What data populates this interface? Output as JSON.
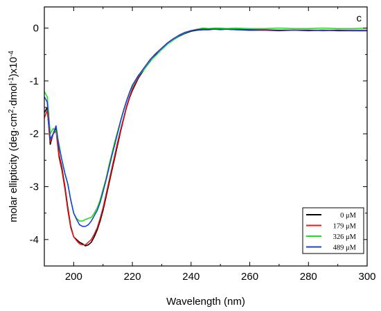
{
  "panel_label": "c",
  "chart_data": {
    "type": "line",
    "title": "",
    "xlabel": "Wavelength (nm)",
    "ylabel": {
      "main": "molar ellipticity (deg·cm",
      "sup1": "2",
      "mid": "·dmol",
      "sup2": "-1",
      "tail": ")x10",
      "sup3": "-4"
    },
    "xlim": [
      190,
      300
    ],
    "ylim": [
      -4.5,
      0.4
    ],
    "x_ticks": [
      200,
      220,
      240,
      260,
      280,
      300
    ],
    "y_ticks": [
      0,
      -1,
      -2,
      -3,
      -4
    ],
    "x_tick_labels": [
      "200",
      "220",
      "240",
      "260",
      "280",
      "300"
    ],
    "y_tick_labels": [
      "0",
      "-1",
      "-2",
      "-3",
      "-4"
    ],
    "grid": false,
    "legend_position": "bottom-right",
    "series": [
      {
        "name": "0 μM",
        "color": "#000000",
        "x": [
          190,
          191,
          192,
          193,
          194,
          195,
          196,
          197,
          198,
          199,
          200,
          201,
          202,
          203,
          204,
          205,
          206,
          207,
          208,
          209,
          210,
          211,
          212,
          213,
          214,
          215,
          216,
          217,
          218,
          219,
          220,
          222,
          224,
          226,
          228,
          230,
          232,
          234,
          236,
          238,
          240,
          242,
          244,
          246,
          248,
          250,
          252,
          255,
          260,
          265,
          270,
          275,
          280,
          285,
          290,
          295,
          300
        ],
        "y": [
          -1.6,
          -1.5,
          -2.2,
          -2.0,
          -1.9,
          -2.4,
          -2.65,
          -3.0,
          -3.4,
          -3.75,
          -3.95,
          -4.0,
          -4.05,
          -4.08,
          -4.12,
          -4.1,
          -4.05,
          -3.95,
          -3.82,
          -3.65,
          -3.45,
          -3.2,
          -2.95,
          -2.7,
          -2.45,
          -2.2,
          -1.95,
          -1.72,
          -1.5,
          -1.32,
          -1.18,
          -0.95,
          -0.78,
          -0.63,
          -0.5,
          -0.4,
          -0.3,
          -0.22,
          -0.15,
          -0.1,
          -0.06,
          -0.04,
          -0.03,
          -0.03,
          -0.02,
          -0.02,
          -0.02,
          -0.03,
          -0.04,
          -0.04,
          -0.05,
          -0.04,
          -0.05,
          -0.04,
          -0.05,
          -0.05,
          -0.05
        ]
      },
      {
        "name": "179 μM",
        "color": "#e41a1c",
        "x": [
          190,
          191,
          192,
          193,
          194,
          195,
          196,
          197,
          198,
          199,
          200,
          201,
          202,
          203,
          204,
          205,
          206,
          207,
          208,
          209,
          210,
          211,
          212,
          213,
          214,
          215,
          216,
          217,
          218,
          219,
          220,
          222,
          224,
          226,
          228,
          230,
          232,
          234,
          236,
          238,
          240,
          242,
          244,
          246,
          248,
          250,
          252,
          255,
          260,
          265,
          270,
          275,
          280,
          285,
          290,
          295,
          300
        ],
        "y": [
          -1.7,
          -1.55,
          -2.15,
          -2.0,
          -1.95,
          -2.45,
          -2.7,
          -3.05,
          -3.45,
          -3.78,
          -3.95,
          -4.02,
          -4.08,
          -4.1,
          -4.1,
          -4.05,
          -4.0,
          -3.9,
          -3.78,
          -3.6,
          -3.4,
          -3.15,
          -2.9,
          -2.65,
          -2.4,
          -2.15,
          -1.92,
          -1.7,
          -1.48,
          -1.3,
          -1.15,
          -0.93,
          -0.76,
          -0.6,
          -0.48,
          -0.38,
          -0.28,
          -0.2,
          -0.14,
          -0.09,
          -0.05,
          -0.03,
          -0.02,
          -0.02,
          -0.02,
          -0.01,
          -0.02,
          -0.02,
          -0.03,
          -0.03,
          -0.04,
          -0.04,
          -0.04,
          -0.04,
          -0.04,
          -0.04,
          -0.04
        ]
      },
      {
        "name": "326 μM",
        "color": "#22dd22",
        "x": [
          190,
          191,
          192,
          193,
          194,
          195,
          196,
          197,
          198,
          199,
          200,
          201,
          202,
          203,
          204,
          205,
          206,
          207,
          208,
          209,
          210,
          211,
          212,
          213,
          214,
          215,
          216,
          217,
          218,
          219,
          220,
          222,
          224,
          226,
          228,
          230,
          232,
          234,
          236,
          238,
          240,
          242,
          244,
          246,
          248,
          250,
          252,
          255,
          260,
          265,
          270,
          275,
          280,
          285,
          290,
          295,
          300
        ],
        "y": [
          -1.2,
          -1.3,
          -2.0,
          -1.9,
          -1.95,
          -2.2,
          -2.5,
          -2.75,
          -2.95,
          -3.25,
          -3.5,
          -3.6,
          -3.65,
          -3.65,
          -3.62,
          -3.6,
          -3.58,
          -3.5,
          -3.4,
          -3.25,
          -3.05,
          -2.85,
          -2.6,
          -2.38,
          -2.15,
          -1.95,
          -1.75,
          -1.55,
          -1.38,
          -1.22,
          -1.1,
          -0.9,
          -0.78,
          -0.62,
          -0.52,
          -0.4,
          -0.3,
          -0.22,
          -0.14,
          -0.09,
          -0.05,
          -0.02,
          0.0,
          -0.01,
          0.0,
          0.0,
          -0.01,
          0.0,
          -0.01,
          -0.01,
          0.0,
          -0.01,
          -0.01,
          0.0,
          -0.01,
          -0.01,
          0.0
        ]
      },
      {
        "name": "489 μM",
        "color": "#1f3fdd",
        "x": [
          190,
          191,
          192,
          193,
          194,
          195,
          196,
          197,
          198,
          199,
          200,
          201,
          202,
          203,
          204,
          205,
          206,
          207,
          208,
          209,
          210,
          211,
          212,
          213,
          214,
          215,
          216,
          217,
          218,
          219,
          220,
          222,
          224,
          226,
          228,
          230,
          232,
          234,
          236,
          238,
          240,
          242,
          244,
          246,
          248,
          250,
          252,
          255,
          260,
          265,
          270,
          275,
          280,
          285,
          290,
          295,
          300
        ],
        "y": [
          -1.3,
          -1.4,
          -2.1,
          -2.0,
          -1.85,
          -2.25,
          -2.5,
          -2.75,
          -2.95,
          -3.25,
          -3.5,
          -3.62,
          -3.72,
          -3.75,
          -3.75,
          -3.72,
          -3.65,
          -3.55,
          -3.45,
          -3.3,
          -3.1,
          -2.88,
          -2.65,
          -2.42,
          -2.2,
          -1.98,
          -1.76,
          -1.56,
          -1.38,
          -1.22,
          -1.08,
          -0.9,
          -0.75,
          -0.6,
          -0.48,
          -0.38,
          -0.28,
          -0.2,
          -0.13,
          -0.08,
          -0.05,
          -0.03,
          -0.02,
          -0.02,
          -0.02,
          -0.03,
          -0.02,
          -0.03,
          -0.03,
          -0.04,
          -0.04,
          -0.04,
          -0.04,
          -0.05,
          -0.04,
          -0.05,
          -0.05
        ]
      }
    ]
  }
}
